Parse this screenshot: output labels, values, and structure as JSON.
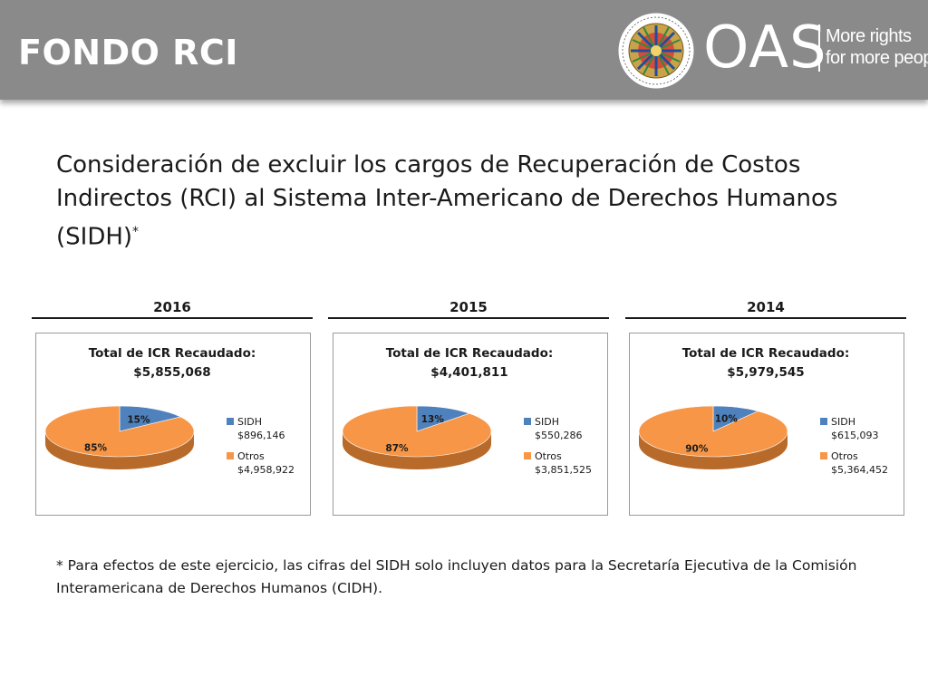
{
  "header": {
    "title": "FONDO RCI",
    "logo_text": "OAS",
    "tagline_line1": "More rights",
    "tagline_line2": "for more people",
    "seal_text": "ORGANIZATION OF AMERICAN STATES"
  },
  "main": {
    "title": "Consideración de excluir los cargos de Recuperación de Costos Indirectos (RCI) al Sistema Inter-Americano de Derechos Humanos (SIDH)",
    "title_mark": "*"
  },
  "footnote": "* Para efectos de este ejercicio, las cifras del SIDH solo incluyen datos para la Secretaría Ejecutiva de la Comisión Interamericana de Derechos Humanos (CIDH).",
  "colors": {
    "sidh": "#4f81bd",
    "otros": "#f79646",
    "header_bg": "#8a8a8a"
  },
  "chart_data": [
    {
      "type": "pie",
      "year": "2016",
      "title_line1": "Total de ICR Recaudado:",
      "title_line2": "$5,855,068",
      "slices": [
        {
          "name": "SIDH",
          "value": 896146,
          "value_label": "$896,146",
          "pct_label": "15%"
        },
        {
          "name": "Otros",
          "value": 4958922,
          "value_label": "$4,958,922",
          "pct_label": "85%"
        }
      ],
      "legend_position": "right"
    },
    {
      "type": "pie",
      "year": "2015",
      "title_line1": "Total de ICR Recaudado:",
      "title_line2": "$4,401,811",
      "slices": [
        {
          "name": "SIDH",
          "value": 550286,
          "value_label": "$550,286",
          "pct_label": "13%"
        },
        {
          "name": "Otros",
          "value": 3851525,
          "value_label": "$3,851,525",
          "pct_label": "87%"
        }
      ],
      "legend_position": "right"
    },
    {
      "type": "pie",
      "year": "2014",
      "title_line1": "Total de ICR Recaudado:",
      "title_line2": "$5,979,545",
      "slices": [
        {
          "name": "SIDH",
          "value": 615093,
          "value_label": "$615,093",
          "pct_label": "10%"
        },
        {
          "name": "Otros",
          "value": 5364452,
          "value_label": "$5,364,452",
          "pct_label": "90%"
        }
      ],
      "legend_position": "right"
    }
  ]
}
